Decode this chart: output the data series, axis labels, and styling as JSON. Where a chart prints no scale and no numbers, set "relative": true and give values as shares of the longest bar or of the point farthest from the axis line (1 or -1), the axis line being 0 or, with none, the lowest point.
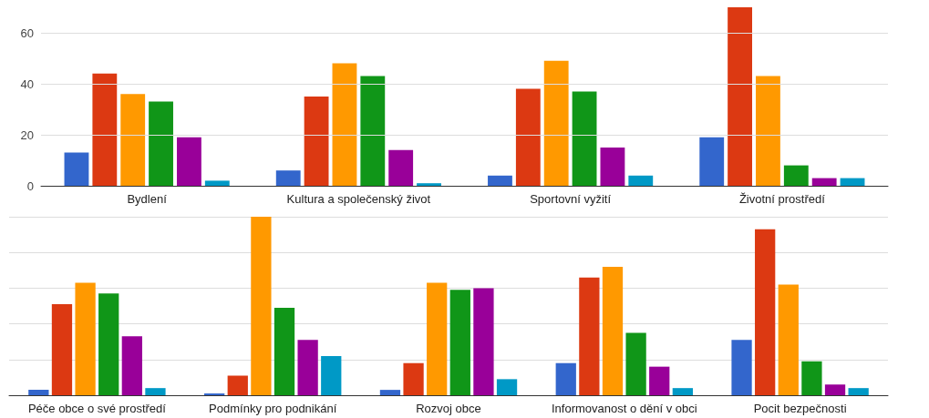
{
  "chart_data": [
    {
      "type": "bar",
      "categories": [
        "Bydlení",
        "Kultura a společenský život",
        "Sportovní vyžití",
        "Životní prostředí"
      ],
      "series": [
        {
          "color": "#3366cc",
          "values": [
            13,
            6,
            4,
            19
          ]
        },
        {
          "color": "#dc3912",
          "values": [
            44,
            35,
            38,
            70
          ]
        },
        {
          "color": "#ff9900",
          "values": [
            36,
            48,
            49,
            43
          ]
        },
        {
          "color": "#109618",
          "values": [
            33,
            43,
            37,
            8
          ]
        },
        {
          "color": "#990099",
          "values": [
            19,
            14,
            15,
            3
          ]
        },
        {
          "color": "#0099c6",
          "values": [
            2,
            1,
            4,
            3
          ]
        }
      ],
      "ylim": [
        0,
        70
      ],
      "yticks": [
        0,
        20,
        40,
        60
      ],
      "grid": "y"
    },
    {
      "type": "bar",
      "relative": true,
      "categories": [
        "Péče obce o své prostředí",
        "Podmínky pro podnikání",
        "Rozvoj obce",
        "Informovanost o dění v obci",
        "Pocit bezpečnosti"
      ],
      "series": [
        {
          "color": "#3366cc",
          "values": [
            0.03,
            0.01,
            0.03,
            0.18,
            0.31
          ]
        },
        {
          "color": "#dc3912",
          "values": [
            0.51,
            0.11,
            0.18,
            0.66,
            0.93
          ]
        },
        {
          "color": "#ff9900",
          "values": [
            0.63,
            1,
            0.63,
            0.72,
            0.62
          ]
        },
        {
          "color": "#109618",
          "values": [
            0.57,
            0.49,
            0.59,
            0.35,
            0.19
          ]
        },
        {
          "color": "#990099",
          "values": [
            0.33,
            0.31,
            0.6,
            0.16,
            0.06
          ]
        },
        {
          "color": "#0099c6",
          "values": [
            0.04,
            0.22,
            0.09,
            0.04,
            0.04
          ]
        }
      ],
      "grid": "y"
    }
  ]
}
